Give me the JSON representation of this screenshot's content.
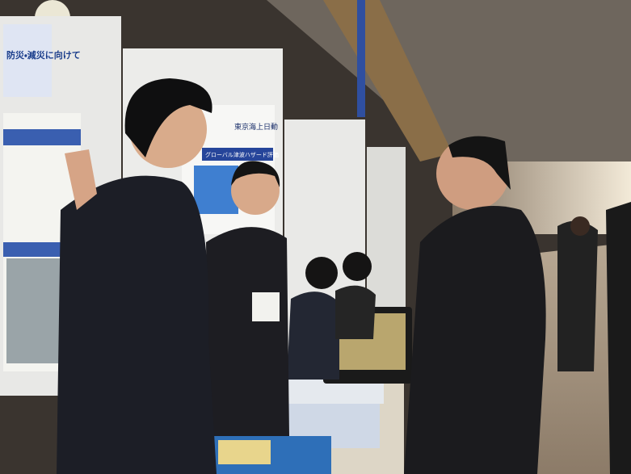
{
  "posters": {
    "left_heading": "防災・減災に向けて",
    "center_brand": "東京海上日動",
    "center_heading": "グローバル津波ハザード評価"
  }
}
